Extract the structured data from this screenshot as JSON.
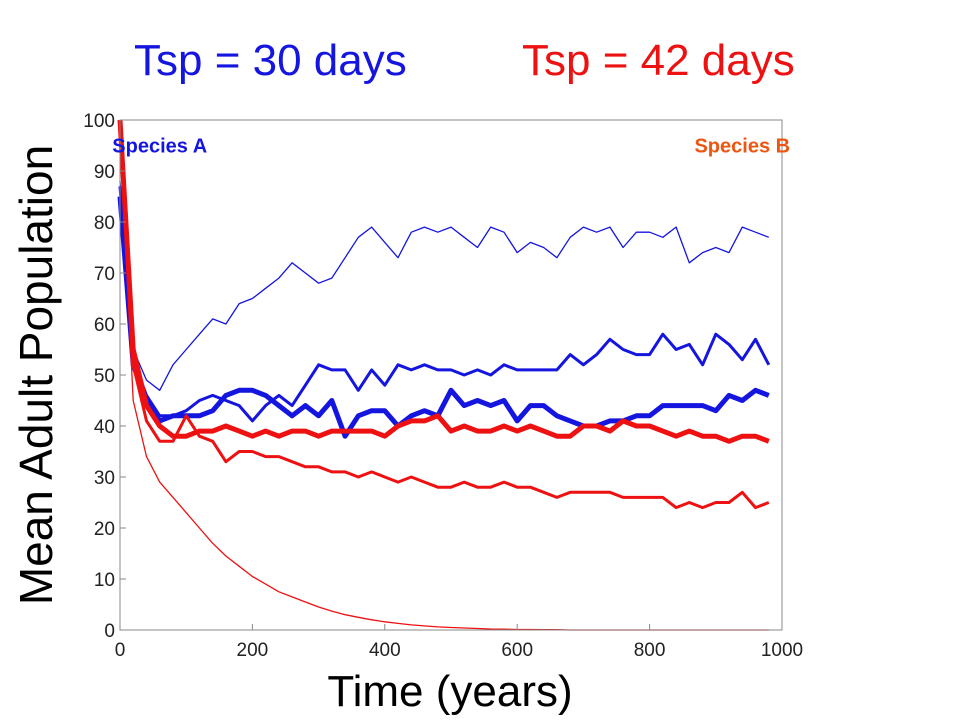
{
  "headings": {
    "left": "Tsp = 30 days",
    "right": "Tsp = 42 days",
    "left_color": "#1515e0",
    "right_color": "#ee1111"
  },
  "chart_data": {
    "type": "line",
    "xlabel": "Time (years)",
    "ylabel": "Mean Adult Population",
    "xlim": [
      0,
      1000
    ],
    "ylim": [
      0,
      100
    ],
    "xticks": [
      0,
      200,
      400,
      600,
      800,
      1000
    ],
    "yticks": [
      0,
      10,
      20,
      30,
      40,
      50,
      60,
      70,
      80,
      90,
      100
    ],
    "grid": false,
    "annotations": [
      {
        "text": "Species A",
        "color": "#1515e0",
        "x": 60,
        "y": 95
      },
      {
        "text": "Species B",
        "color": "#ee5511",
        "x": 940,
        "y": 95
      }
    ],
    "series": [
      {
        "color": "#1515e0",
        "weight": "thin",
        "x": [
          0,
          20,
          40,
          60,
          80,
          100,
          120,
          140,
          160,
          180,
          200,
          220,
          240,
          260,
          280,
          300,
          320,
          340,
          360,
          380,
          400,
          420,
          440,
          460,
          480,
          500,
          520,
          540,
          560,
          580,
          600,
          620,
          640,
          660,
          680,
          700,
          720,
          740,
          760,
          780,
          800,
          820,
          840,
          860,
          880,
          900,
          920,
          940,
          960,
          980
        ],
        "y": [
          88,
          55,
          49,
          47,
          52,
          55,
          58,
          61,
          60,
          64,
          65,
          67,
          69,
          72,
          70,
          68,
          69,
          73,
          77,
          79,
          76,
          73,
          78,
          79,
          78,
          79,
          77,
          75,
          79,
          78,
          74,
          76,
          75,
          73,
          77,
          79,
          78,
          79,
          75,
          78,
          78,
          77,
          79,
          72,
          74,
          75,
          74,
          79,
          78,
          77
        ]
      },
      {
        "color": "#1515e0",
        "weight": "medium",
        "x": [
          0,
          20,
          40,
          60,
          80,
          100,
          120,
          140,
          160,
          180,
          200,
          220,
          240,
          260,
          280,
          300,
          320,
          340,
          360,
          380,
          400,
          420,
          440,
          460,
          480,
          500,
          520,
          540,
          560,
          580,
          600,
          620,
          640,
          660,
          680,
          700,
          720,
          740,
          760,
          780,
          800,
          820,
          840,
          860,
          880,
          900,
          920,
          940,
          960,
          980
        ],
        "y": [
          87,
          53,
          46,
          42,
          42,
          43,
          45,
          46,
          45,
          44,
          41,
          44,
          46,
          44,
          48,
          52,
          51,
          51,
          47,
          51,
          48,
          52,
          51,
          52,
          51,
          51,
          50,
          51,
          50,
          52,
          51,
          51,
          51,
          51,
          54,
          52,
          54,
          57,
          55,
          54,
          54,
          58,
          55,
          56,
          52,
          58,
          56,
          53,
          57,
          52
        ]
      },
      {
        "color": "#1515e0",
        "weight": "thick",
        "x": [
          0,
          20,
          40,
          60,
          80,
          100,
          120,
          140,
          160,
          180,
          200,
          220,
          240,
          260,
          280,
          300,
          320,
          340,
          360,
          380,
          400,
          420,
          440,
          460,
          480,
          500,
          520,
          540,
          560,
          580,
          600,
          620,
          640,
          660,
          680,
          700,
          720,
          740,
          760,
          780,
          800,
          820,
          840,
          860,
          880,
          900,
          920,
          940,
          960,
          980
        ],
        "y": [
          85,
          52,
          45,
          41,
          42,
          42,
          42,
          43,
          46,
          47,
          47,
          46,
          44,
          42,
          44,
          42,
          45,
          38,
          42,
          43,
          43,
          40,
          42,
          43,
          42,
          47,
          44,
          45,
          44,
          45,
          41,
          44,
          44,
          42,
          41,
          40,
          40,
          41,
          41,
          42,
          42,
          44,
          44,
          44,
          44,
          43,
          46,
          45,
          47,
          46
        ]
      },
      {
        "color": "#ee1111",
        "weight": "thick",
        "x": [
          0,
          20,
          40,
          60,
          80,
          100,
          120,
          140,
          160,
          180,
          200,
          220,
          240,
          260,
          280,
          300,
          320,
          340,
          360,
          380,
          400,
          420,
          440,
          460,
          480,
          500,
          520,
          540,
          560,
          580,
          600,
          620,
          640,
          660,
          680,
          700,
          720,
          740,
          760,
          780,
          800,
          820,
          840,
          860,
          880,
          900,
          920,
          940,
          960,
          980
        ],
        "y": [
          100,
          55,
          44,
          40,
          38,
          38,
          39,
          39,
          40,
          39,
          38,
          39,
          38,
          39,
          39,
          38,
          39,
          39,
          39,
          39,
          38,
          40,
          41,
          41,
          42,
          39,
          40,
          39,
          39,
          40,
          39,
          40,
          39,
          38,
          38,
          40,
          40,
          39,
          41,
          40,
          40,
          39,
          38,
          39,
          38,
          38,
          37,
          38,
          38,
          37
        ]
      },
      {
        "color": "#ee1111",
        "weight": "medium",
        "x": [
          0,
          20,
          40,
          60,
          80,
          100,
          120,
          140,
          160,
          180,
          200,
          220,
          240,
          260,
          280,
          300,
          320,
          340,
          360,
          380,
          400,
          420,
          440,
          460,
          480,
          500,
          520,
          540,
          560,
          580,
          600,
          620,
          640,
          660,
          680,
          700,
          720,
          740,
          760,
          780,
          800,
          820,
          840,
          860,
          880,
          900,
          920,
          940,
          960,
          980
        ],
        "y": [
          98,
          52,
          41,
          37,
          37,
          42,
          38,
          37,
          33,
          35,
          35,
          34,
          34,
          33,
          32,
          32,
          31,
          31,
          30,
          31,
          30,
          29,
          30,
          29,
          28,
          28,
          29,
          28,
          28,
          29,
          28,
          28,
          27,
          26,
          27,
          27,
          27,
          27,
          26,
          26,
          26,
          26,
          24,
          25,
          24,
          25,
          25,
          27,
          24,
          25
        ]
      },
      {
        "color": "#ee1111",
        "weight": "thin",
        "x": [
          0,
          20,
          40,
          60,
          80,
          100,
          120,
          140,
          160,
          180,
          200,
          220,
          240,
          260,
          280,
          300,
          320,
          340,
          360,
          380,
          400,
          420,
          440,
          460,
          480,
          500,
          520,
          540,
          560,
          580,
          600,
          620,
          640,
          660,
          680,
          700,
          720,
          740,
          760,
          780,
          800,
          820,
          840,
          860,
          880,
          900,
          920,
          940,
          960,
          980
        ],
        "y": [
          98,
          45,
          34,
          29,
          26,
          23,
          20,
          17,
          14.5,
          12.5,
          10.5,
          9,
          7.5,
          6.5,
          5.5,
          4.5,
          3.7,
          3,
          2.5,
          2,
          1.6,
          1.3,
          1,
          0.8,
          0.6,
          0.5,
          0.4,
          0.3,
          0.2,
          0.15,
          0.1,
          0.1,
          0.05,
          0.05,
          0,
          0,
          0,
          0,
          0,
          0,
          0,
          0,
          0,
          0,
          0,
          0,
          0,
          0,
          0,
          0
        ]
      }
    ]
  }
}
